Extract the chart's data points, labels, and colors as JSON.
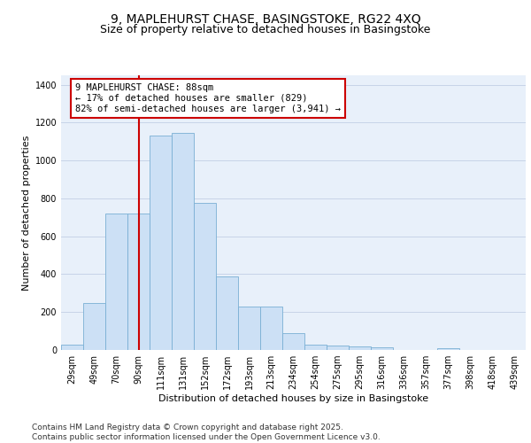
{
  "title_line1": "9, MAPLEHURST CHASE, BASINGSTOKE, RG22 4XQ",
  "title_line2": "Size of property relative to detached houses in Basingstoke",
  "xlabel": "Distribution of detached houses by size in Basingstoke",
  "ylabel": "Number of detached properties",
  "categories": [
    "29sqm",
    "49sqm",
    "70sqm",
    "90sqm",
    "111sqm",
    "131sqm",
    "152sqm",
    "172sqm",
    "193sqm",
    "213sqm",
    "234sqm",
    "254sqm",
    "275sqm",
    "295sqm",
    "316sqm",
    "336sqm",
    "357sqm",
    "377sqm",
    "398sqm",
    "418sqm",
    "439sqm"
  ],
  "values": [
    30,
    248,
    720,
    720,
    1130,
    1145,
    775,
    390,
    230,
    228,
    90,
    28,
    25,
    20,
    15,
    0,
    0,
    10,
    0,
    0,
    0
  ],
  "bar_color": "#cce0f5",
  "bar_edge_color": "#7aafd4",
  "grid_color": "#c8d4e8",
  "background_color": "#e8f0fa",
  "annotation_text": "9 MAPLEHURST CHASE: 88sqm\n← 17% of detached houses are smaller (829)\n82% of semi-detached houses are larger (3,941) →",
  "annotation_box_color": "#ffffff",
  "annotation_box_edge": "#cc0000",
  "vline_color": "#cc0000",
  "vline_x_index": 3.0,
  "ylim": [
    0,
    1450
  ],
  "yticks": [
    0,
    200,
    400,
    600,
    800,
    1000,
    1200,
    1400
  ],
  "footer_text": "Contains HM Land Registry data © Crown copyright and database right 2025.\nContains public sector information licensed under the Open Government Licence v3.0.",
  "title_fontsize": 10,
  "subtitle_fontsize": 9,
  "axis_label_fontsize": 8,
  "tick_fontsize": 7,
  "annotation_fontsize": 7.5,
  "footer_fontsize": 6.5
}
